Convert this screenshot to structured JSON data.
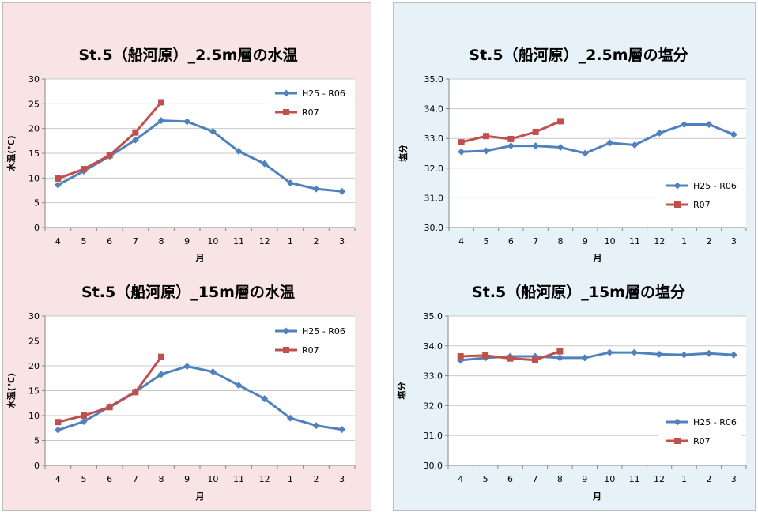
{
  "chart_data": [
    {
      "type": "line",
      "title": "St.5（船河原）_2.5m層の水温",
      "xlabel": "月",
      "ylabel": "水温(℃)",
      "categories": [
        "4",
        "5",
        "6",
        "7",
        "8",
        "9",
        "10",
        "11",
        "12",
        "1",
        "2",
        "3"
      ],
      "yticks": [
        "0",
        "5",
        "10",
        "15",
        "20",
        "25",
        "30"
      ],
      "ylim": [
        0,
        30
      ],
      "grid": true,
      "legend": "top-right",
      "series": [
        {
          "name": "H25 - R06",
          "color": "#4f81bd",
          "marker": "diamond",
          "values": [
            8.6,
            11.4,
            14.4,
            17.7,
            21.6,
            21.4,
            19.4,
            15.4,
            12.9,
            9.0,
            7.8,
            7.3
          ]
        },
        {
          "name": "R07",
          "color": "#c0504d",
          "marker": "square",
          "values": [
            9.9,
            11.8,
            14.6,
            19.2,
            25.3,
            null,
            null,
            null,
            null,
            null,
            null,
            null
          ]
        }
      ]
    },
    {
      "type": "line",
      "title": "St.5（船河原）_2.5m層の塩分",
      "xlabel": "月",
      "ylabel": "塩分",
      "categories": [
        "4",
        "5",
        "6",
        "7",
        "8",
        "9",
        "10",
        "11",
        "12",
        "1",
        "2",
        "3"
      ],
      "yticks": [
        "30.0",
        "31.0",
        "32.0",
        "33.0",
        "34.0",
        "35.0"
      ],
      "ylim": [
        30,
        35
      ],
      "grid": true,
      "legend": "bottom-right",
      "series": [
        {
          "name": "H25 - R06",
          "color": "#4f81bd",
          "marker": "diamond",
          "values": [
            32.55,
            32.58,
            32.75,
            32.75,
            32.7,
            32.5,
            32.85,
            32.78,
            33.18,
            33.47,
            33.47,
            33.13
          ]
        },
        {
          "name": "R07",
          "color": "#c0504d",
          "marker": "square",
          "values": [
            32.87,
            33.08,
            32.98,
            33.22,
            33.58,
            null,
            null,
            null,
            null,
            null,
            null,
            null
          ]
        }
      ]
    },
    {
      "type": "line",
      "title": "St.5（船河原）_15m層の水温",
      "xlabel": "月",
      "ylabel": "水温(℃)",
      "categories": [
        "4",
        "5",
        "6",
        "7",
        "8",
        "9",
        "10",
        "11",
        "12",
        "1",
        "2",
        "3"
      ],
      "yticks": [
        "0",
        "5",
        "10",
        "15",
        "20",
        "25",
        "30"
      ],
      "ylim": [
        0,
        30
      ],
      "grid": true,
      "legend": "top-right",
      "series": [
        {
          "name": "H25 - R06",
          "color": "#4f81bd",
          "marker": "diamond",
          "values": [
            7.1,
            8.8,
            11.8,
            14.8,
            18.3,
            19.9,
            18.8,
            16.1,
            13.4,
            9.5,
            8.0,
            7.2
          ]
        },
        {
          "name": "R07",
          "color": "#c0504d",
          "marker": "square",
          "values": [
            8.7,
            10.0,
            11.7,
            14.7,
            21.8,
            null,
            null,
            null,
            null,
            null,
            null,
            null
          ]
        }
      ]
    },
    {
      "type": "line",
      "title": "St.5（船河原）_15m層の塩分",
      "xlabel": "月",
      "ylabel": "塩分",
      "categories": [
        "4",
        "5",
        "6",
        "7",
        "8",
        "9",
        "10",
        "11",
        "12",
        "1",
        "2",
        "3"
      ],
      "yticks": [
        "30.0",
        "31.0",
        "32.0",
        "33.0",
        "34.0",
        "35.0"
      ],
      "ylim": [
        30,
        35
      ],
      "grid": true,
      "legend": "bottom-right",
      "series": [
        {
          "name": "H25 - R06",
          "color": "#4f81bd",
          "marker": "diamond",
          "values": [
            33.52,
            33.6,
            33.65,
            33.65,
            33.6,
            33.6,
            33.78,
            33.78,
            33.72,
            33.7,
            33.75,
            33.7
          ]
        },
        {
          "name": "R07",
          "color": "#c0504d",
          "marker": "square",
          "values": [
            33.65,
            33.68,
            33.58,
            33.53,
            33.82,
            null,
            null,
            null,
            null,
            null,
            null,
            null
          ]
        }
      ]
    }
  ]
}
